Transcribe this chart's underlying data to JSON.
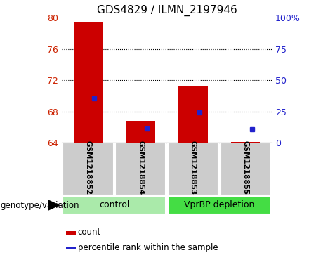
{
  "title": "GDS4829 / ILMN_2197946",
  "samples": [
    "GSM1218852",
    "GSM1218854",
    "GSM1218853",
    "GSM1218855"
  ],
  "groups": [
    "control",
    "control",
    "VprBP depletion",
    "VprBP depletion"
  ],
  "count_values": [
    79.5,
    66.8,
    71.2,
    64.15
  ],
  "percentile_values": [
    69.7,
    65.8,
    67.9,
    65.7
  ],
  "ymin": 64,
  "ymax": 80,
  "yticks_left": [
    64,
    68,
    72,
    76,
    80
  ],
  "yticks_right": [
    0,
    25,
    50,
    75,
    100
  ],
  "yright_min": 0,
  "yright_max": 100,
  "bar_color": "#cc0000",
  "percentile_color": "#2222cc",
  "control_color": "#aaeaaa",
  "vpr_color": "#44dd44",
  "gray_color": "#cccccc",
  "left_tick_color": "#cc2200",
  "right_tick_color": "#2222cc",
  "legend_labels": [
    "count",
    "percentile rank within the sample"
  ],
  "genotype_label": "genotype/variation",
  "group_names": [
    "control",
    "VprBP depletion"
  ]
}
